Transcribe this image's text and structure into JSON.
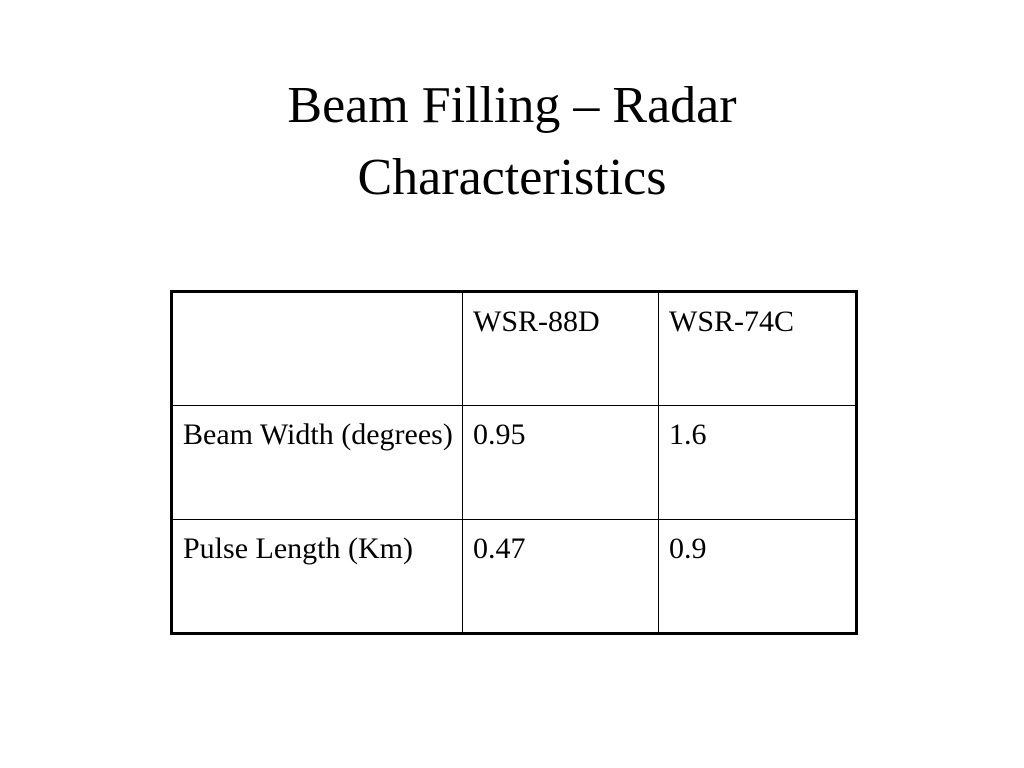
{
  "title": "Beam Filling – Radar Characteristics",
  "table": {
    "header": [
      "WSR-88D",
      "WSR-74C"
    ],
    "rows": [
      [
        "Beam Width (degrees)",
        "0.95",
        "1.6"
      ],
      [
        "Pulse Length (Km)",
        "0.47",
        "0.9"
      ]
    ]
  }
}
